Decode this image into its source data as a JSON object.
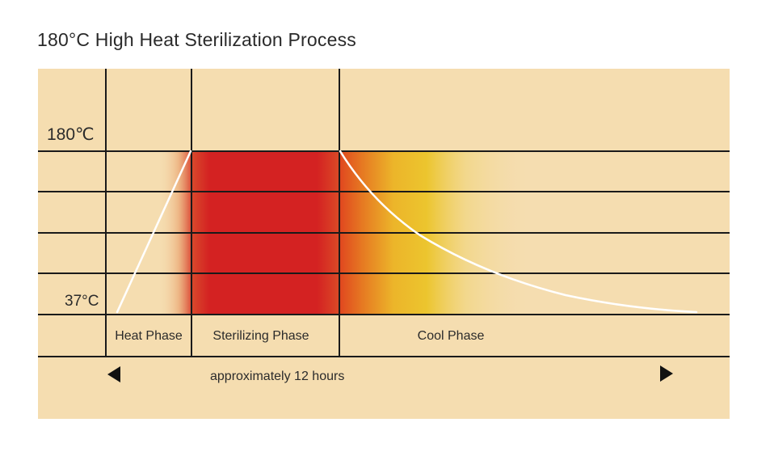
{
  "title": "180°C High Heat Sterilization Process",
  "temperature_labels": {
    "top": "180℃",
    "bottom": "37°C"
  },
  "phases": [
    {
      "label": "Heat Phase"
    },
    {
      "label": "Sterilizing Phase"
    },
    {
      "label": "Cool Phase"
    }
  ],
  "duration_label": "approximately 12 hours",
  "arrows": {
    "left_icon": "triangle-left-icon",
    "right_icon": "triangle-right-icon"
  },
  "colors": {
    "background": "#f5ddb0",
    "grid_line": "#1a1a1a",
    "sterilizing": "#d42222",
    "cool_mid": "#ecc52e",
    "curve": "#ffffff"
  }
}
